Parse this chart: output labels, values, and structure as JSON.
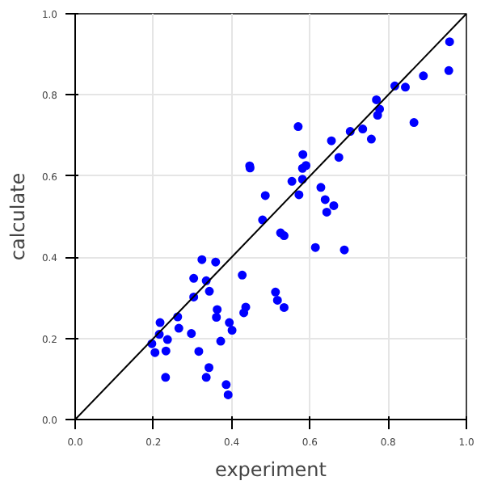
{
  "chart_data": {
    "type": "scatter",
    "xlabel": "experiment",
    "ylabel": "calculate",
    "xlim": [
      0,
      1
    ],
    "ylim": [
      0,
      1
    ],
    "xticks": [
      {
        "value": 0,
        "label": "0.0"
      },
      {
        "value": 0.2,
        "label": "0.2"
      },
      {
        "value": 0.4,
        "label": "0.4"
      },
      {
        "value": 0.6,
        "label": "0.6"
      },
      {
        "value": 0.8,
        "label": "0.8"
      },
      {
        "value": 1,
        "label": "1.0"
      }
    ],
    "yticks": [
      {
        "value": 0,
        "label": "0.0"
      },
      {
        "value": 0.2,
        "label": "0.2"
      },
      {
        "value": 0.4,
        "label": "0.4"
      },
      {
        "value": 0.6,
        "label": "0.6"
      },
      {
        "value": 0.8,
        "label": "0.8"
      },
      {
        "value": 1,
        "label": "1.0"
      }
    ],
    "grid": true,
    "marker": "circle",
    "series": [
      {
        "color": "#0000ff",
        "x": [
          0.196,
          0.217,
          0.215,
          0.204,
          0.232,
          0.236,
          0.231,
          0.262,
          0.265,
          0.297,
          0.303,
          0.303,
          0.324,
          0.316,
          0.335,
          0.343,
          0.359,
          0.363,
          0.361,
          0.372,
          0.342,
          0.335,
          0.386,
          0.391,
          0.394,
          0.401,
          0.427,
          0.431,
          0.436,
          0.479,
          0.512,
          0.517,
          0.534,
          0.525,
          0.534,
          0.614,
          0.688,
          0.446,
          0.447,
          0.486,
          0.957,
          0.955,
          0.89,
          0.844,
          0.817,
          0.77,
          0.778,
          0.773,
          0.866,
          0.735,
          0.703,
          0.757,
          0.57,
          0.655,
          0.674,
          0.582,
          0.59,
          0.581,
          0.554,
          0.581,
          0.572,
          0.628,
          0.639,
          0.661,
          0.643
        ],
        "values": [
          0.187,
          0.239,
          0.21,
          0.165,
          0.169,
          0.197,
          0.104,
          0.253,
          0.225,
          0.212,
          0.302,
          0.348,
          0.394,
          0.168,
          0.342,
          0.316,
          0.388,
          0.271,
          0.252,
          0.193,
          0.128,
          0.104,
          0.086,
          0.061,
          0.239,
          0.22,
          0.356,
          0.263,
          0.277,
          0.492,
          0.314,
          0.294,
          0.276,
          0.46,
          0.453,
          0.424,
          0.418,
          0.625,
          0.62,
          0.552,
          0.931,
          0.86,
          0.847,
          0.819,
          0.822,
          0.788,
          0.765,
          0.75,
          0.732,
          0.716,
          0.71,
          0.691,
          0.722,
          0.687,
          0.646,
          0.653,
          0.626,
          0.619,
          0.587,
          0.592,
          0.554,
          0.572,
          0.542,
          0.527,
          0.511
        ]
      },
      {
        "type": "line",
        "color": "#000000",
        "x": [
          0,
          1
        ],
        "values": [
          0,
          1
        ],
        "marker": "none",
        "line_style": "solid"
      }
    ]
  }
}
